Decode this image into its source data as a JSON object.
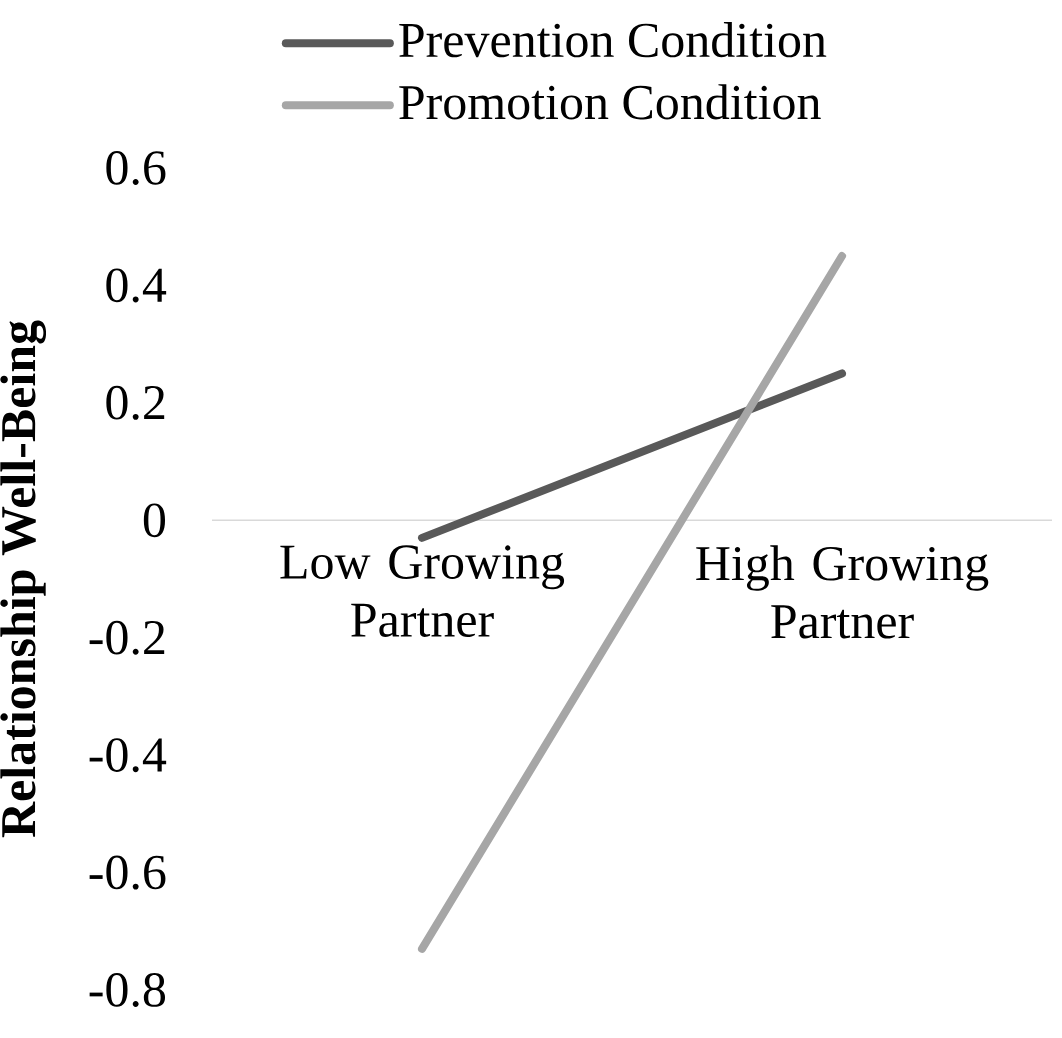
{
  "chart_data": {
    "type": "line",
    "ylabel": "Relationship Well-Being",
    "categories": [
      "Low Growing Partner",
      "High Growing Partner"
    ],
    "series": [
      {
        "name": "Prevention Condition",
        "color": "#595959",
        "values": [
          -0.03,
          0.25
        ]
      },
      {
        "name": "Promotion Condition",
        "color": "#a6a6a6",
        "values": [
          -0.73,
          0.45
        ]
      }
    ],
    "ylim": [
      -0.8,
      0.6
    ],
    "yticks": [
      -0.8,
      -0.6,
      -0.4,
      -0.2,
      0,
      0.2,
      0.4,
      0.6
    ],
    "grid": false,
    "legend": "top"
  }
}
